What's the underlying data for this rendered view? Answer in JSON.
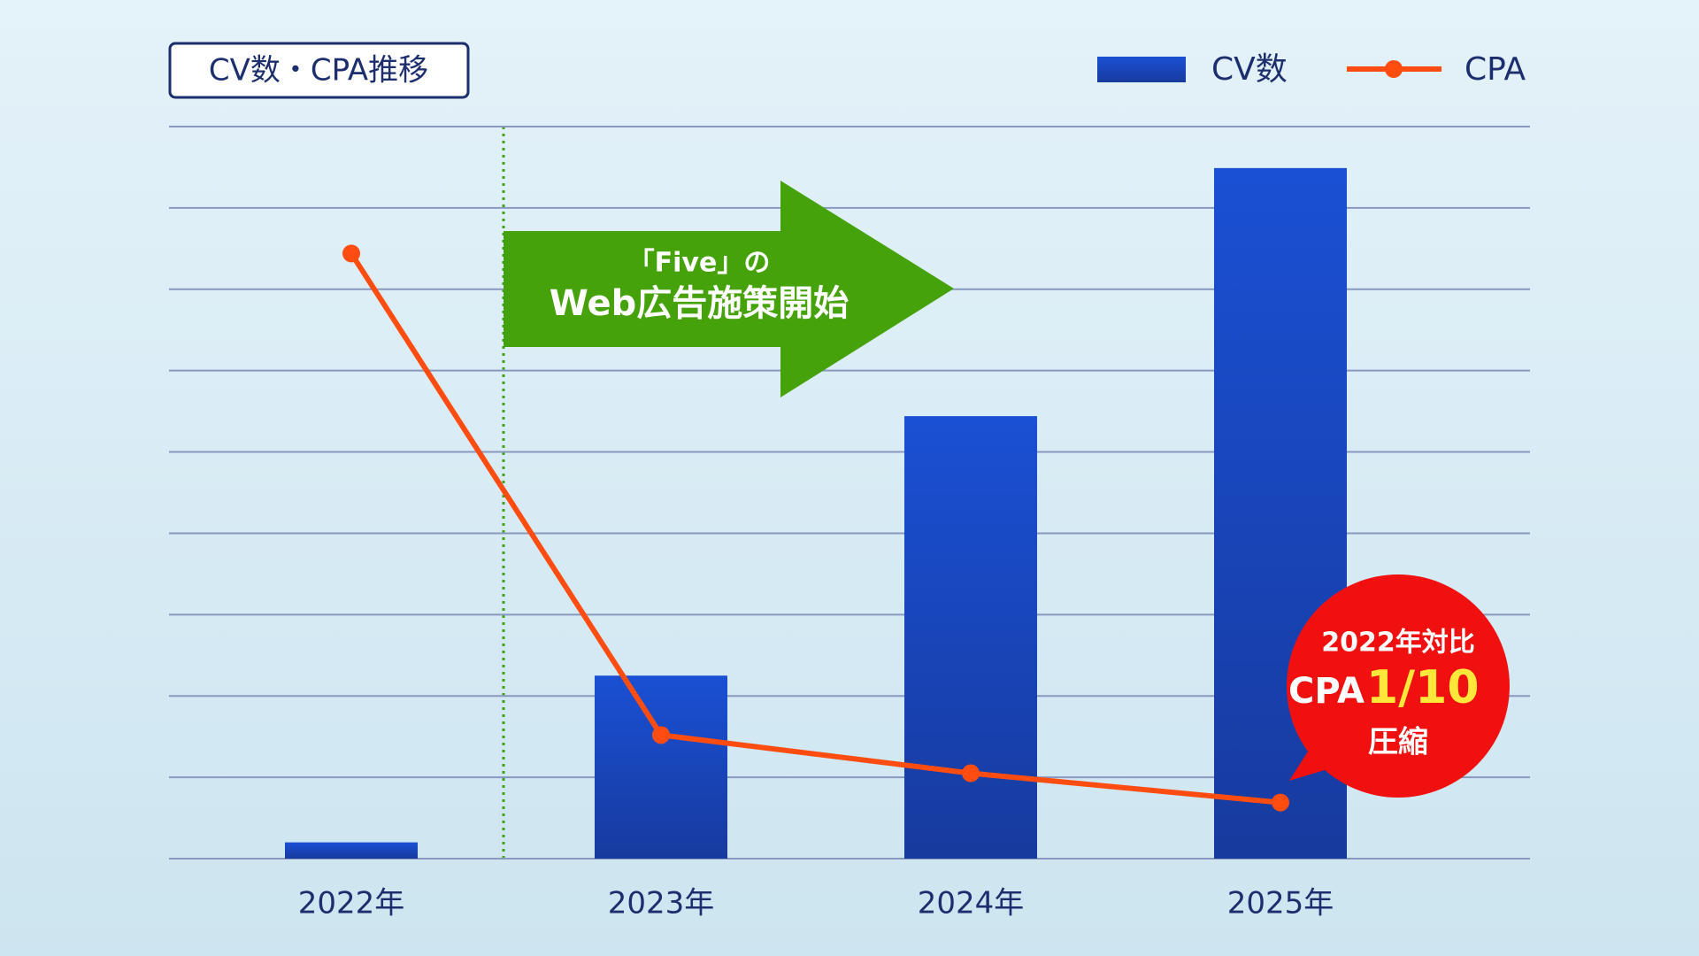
{
  "chart_data": {
    "type": "bar-line",
    "title": "CV数・CPA推移",
    "categories": [
      "2022年",
      "2023年",
      "2024年",
      "2025年"
    ],
    "series": [
      {
        "name": "CV数",
        "type": "bar",
        "color": "#1848c8",
        "values": [
          0.2,
          2.25,
          5.44,
          8.49
        ]
      },
      {
        "name": "CPA",
        "type": "line",
        "color": "#ff4d12",
        "values": [
          7.44,
          1.52,
          1.05,
          0.69
        ]
      }
    ],
    "ylim": [
      0,
      9
    ],
    "yticks": [
      0,
      1,
      2,
      3,
      4,
      5,
      6,
      7,
      8,
      9
    ],
    "grid": true,
    "annotations": {
      "arrow": [
        "「Five」の",
        "Web広告施策開始"
      ],
      "badge": [
        "2022年対比",
        "CPA",
        "1/10",
        "圧縮"
      ]
    }
  }
}
